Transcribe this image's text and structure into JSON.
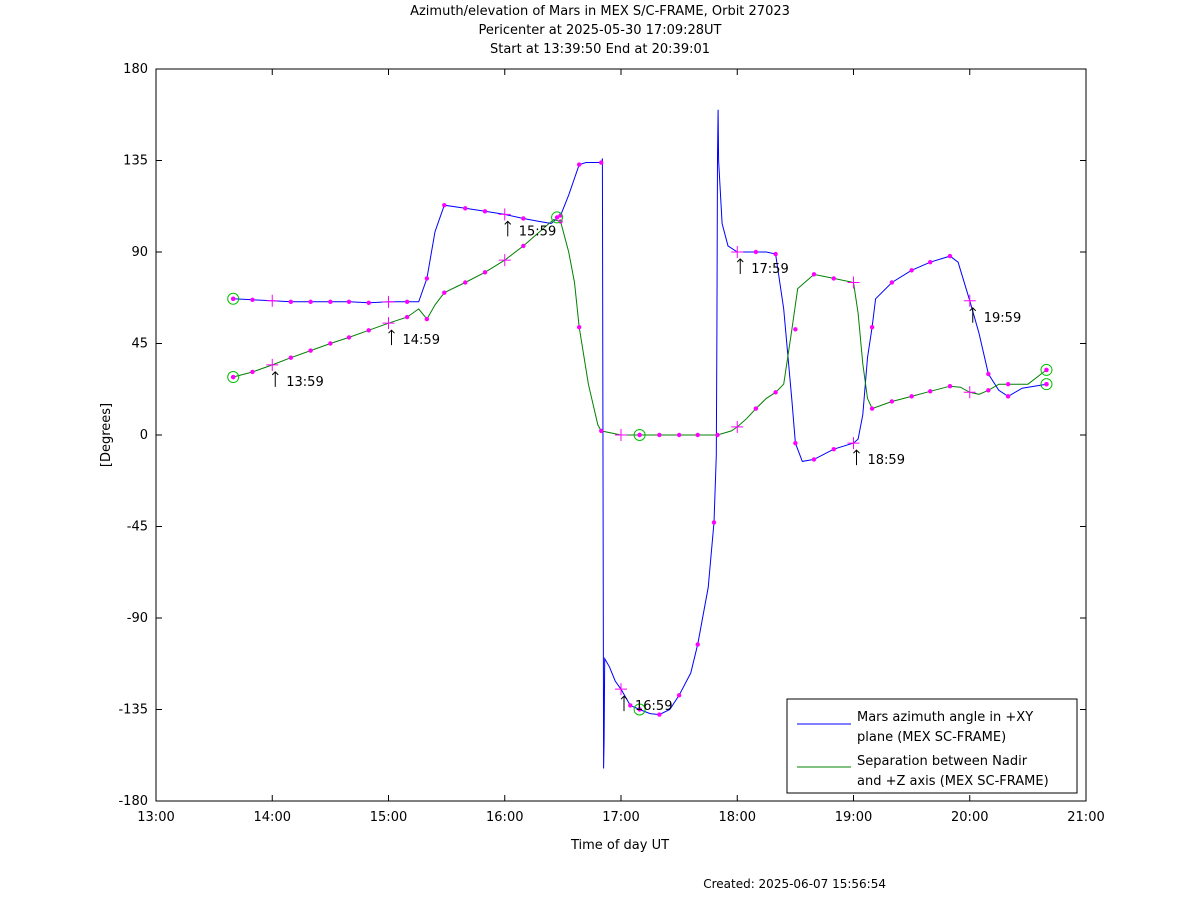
{
  "chart_data": {
    "type": "line",
    "title": "Azimuth/elevation of Mars in MEX S/C-FRAME,  Orbit 27023",
    "subtitle_1": "Pericenter at 2025-05-30 17:09:28UT",
    "subtitle_2": "Start at 13:39:50 End at 20:39:01",
    "xlabel": "Time of day UT",
    "ylabel": "[Degrees]",
    "xlim": [
      13.0,
      21.0
    ],
    "ylim": [
      -180,
      180
    ],
    "x_ticks": [
      {
        "v": 13,
        "label": "13:00"
      },
      {
        "v": 14,
        "label": "14:00"
      },
      {
        "v": 15,
        "label": "15:00"
      },
      {
        "v": 16,
        "label": "16:00"
      },
      {
        "v": 17,
        "label": "17:00"
      },
      {
        "v": 18,
        "label": "18:00"
      },
      {
        "v": 19,
        "label": "19:00"
      },
      {
        "v": 20,
        "label": "20:00"
      },
      {
        "v": 21,
        "label": "21:00"
      }
    ],
    "y_ticks": [
      {
        "v": 180,
        "label": "180"
      },
      {
        "v": 135,
        "label": "135"
      },
      {
        "v": 90,
        "label": "90"
      },
      {
        "v": 45,
        "label": "45"
      },
      {
        "v": 0,
        "label": "0"
      },
      {
        "v": -45,
        "label": "-45"
      },
      {
        "v": -90,
        "label": "-90"
      },
      {
        "v": -135,
        "label": "-135"
      },
      {
        "v": -180,
        "label": "-180"
      }
    ],
    "legend_position": "bottom-right",
    "series": [
      {
        "name_line1": "Mars azimuth angle in +XY",
        "name_line2": "plane (MEX SC-FRAME)",
        "color": "#0000ff",
        "points": [
          [
            13.664,
            67
          ],
          [
            13.83,
            66.5
          ],
          [
            14.0,
            66
          ],
          [
            14.16,
            65.5
          ],
          [
            14.33,
            65.5
          ],
          [
            14.5,
            65.5
          ],
          [
            14.66,
            65.5
          ],
          [
            14.83,
            65
          ],
          [
            15.0,
            65.5
          ],
          [
            15.16,
            65.5
          ],
          [
            15.26,
            65.5
          ],
          [
            15.33,
            77
          ],
          [
            15.4,
            100
          ],
          [
            15.48,
            113
          ],
          [
            15.66,
            111.5
          ],
          [
            15.83,
            110
          ],
          [
            16.0,
            108.5
          ],
          [
            16.16,
            106.5
          ],
          [
            16.3,
            105
          ],
          [
            16.4,
            104
          ],
          [
            16.48,
            108
          ],
          [
            16.55,
            118
          ],
          [
            16.64,
            133
          ],
          [
            16.7,
            134
          ],
          [
            16.83,
            134
          ],
          [
            16.835,
            134
          ],
          [
            16.84,
            136
          ],
          [
            16.85,
            -164
          ],
          [
            16.855,
            -150
          ],
          [
            16.86,
            -110
          ],
          [
            16.9,
            -114
          ],
          [
            16.95,
            -121
          ],
          [
            17.0,
            -125
          ],
          [
            17.08,
            -133
          ],
          [
            17.16,
            -135
          ],
          [
            17.25,
            -137
          ],
          [
            17.33,
            -137.5
          ],
          [
            17.42,
            -135
          ],
          [
            17.5,
            -128
          ],
          [
            17.6,
            -117
          ],
          [
            17.66,
            -103
          ],
          [
            17.75,
            -75
          ],
          [
            17.8,
            -43
          ],
          [
            17.82,
            -10
          ],
          [
            17.825,
            50
          ],
          [
            17.83,
            137
          ],
          [
            17.835,
            160
          ],
          [
            17.84,
            135
          ],
          [
            17.87,
            104
          ],
          [
            17.92,
            93
          ],
          [
            18.0,
            90
          ],
          [
            18.16,
            90
          ],
          [
            18.25,
            90
          ],
          [
            18.33,
            89
          ],
          [
            18.4,
            62
          ],
          [
            18.47,
            17
          ],
          [
            18.5,
            -4
          ],
          [
            18.56,
            -13
          ],
          [
            18.66,
            -12
          ],
          [
            18.83,
            -7
          ],
          [
            19.0,
            -4
          ],
          [
            19.04,
            -2
          ],
          [
            19.08,
            10
          ],
          [
            19.12,
            38
          ],
          [
            19.16,
            53
          ],
          [
            19.19,
            67
          ],
          [
            19.33,
            75
          ],
          [
            19.5,
            81
          ],
          [
            19.66,
            85
          ],
          [
            19.83,
            88
          ],
          [
            19.9,
            85
          ],
          [
            20.0,
            66
          ],
          [
            20.08,
            50
          ],
          [
            20.16,
            30
          ],
          [
            20.25,
            22
          ],
          [
            20.33,
            19
          ],
          [
            20.45,
            23
          ],
          [
            20.66,
            25
          ]
        ],
        "markers": [
          [
            13.664,
            67
          ],
          [
            13.83,
            66.5
          ],
          [
            14.16,
            65.5
          ],
          [
            14.33,
            65.5
          ],
          [
            14.5,
            65.5
          ],
          [
            14.66,
            65.5
          ],
          [
            14.83,
            65
          ],
          [
            15.16,
            65.5
          ],
          [
            15.33,
            77
          ],
          [
            15.48,
            113
          ],
          [
            15.66,
            111.5
          ],
          [
            15.83,
            110
          ],
          [
            16.16,
            106.5
          ],
          [
            16.48,
            108
          ],
          [
            16.64,
            133
          ],
          [
            16.83,
            134
          ],
          [
            17.08,
            -133
          ],
          [
            17.33,
            -137.5
          ],
          [
            17.5,
            -128
          ],
          [
            17.66,
            -103
          ],
          [
            17.8,
            -43
          ],
          [
            18.16,
            90
          ],
          [
            18.33,
            89
          ],
          [
            18.5,
            -4
          ],
          [
            18.66,
            -12
          ],
          [
            18.83,
            -7
          ],
          [
            19.16,
            53
          ],
          [
            19.33,
            75
          ],
          [
            19.5,
            81
          ],
          [
            19.66,
            85
          ],
          [
            19.83,
            88
          ],
          [
            20.16,
            30
          ],
          [
            20.33,
            19
          ],
          [
            20.66,
            25
          ]
        ],
        "hour_marks": [
          [
            14.0,
            66
          ],
          [
            15.0,
            65.5
          ],
          [
            16.0,
            108.5
          ],
          [
            17.0,
            -125
          ],
          [
            18.0,
            90
          ],
          [
            19.0,
            -4
          ],
          [
            20.0,
            66
          ]
        ],
        "endpoints": [
          [
            13.664,
            67
          ],
          [
            20.66,
            25
          ]
        ]
      },
      {
        "name_line1": "Separation between Nadir",
        "name_line2": "and +Z axis (MEX SC-FRAME)",
        "color": "#008000",
        "points": [
          [
            13.664,
            28.5
          ],
          [
            13.83,
            31
          ],
          [
            14.0,
            34.5
          ],
          [
            14.16,
            38
          ],
          [
            14.33,
            41.5
          ],
          [
            14.5,
            45
          ],
          [
            14.66,
            48
          ],
          [
            14.83,
            51.5
          ],
          [
            15.0,
            55
          ],
          [
            15.16,
            58
          ],
          [
            15.26,
            62
          ],
          [
            15.33,
            57
          ],
          [
            15.4,
            64
          ],
          [
            15.48,
            70
          ],
          [
            15.66,
            75
          ],
          [
            15.83,
            80
          ],
          [
            16.0,
            86
          ],
          [
            16.16,
            93
          ],
          [
            16.3,
            100
          ],
          [
            16.42,
            106
          ],
          [
            16.48,
            105
          ],
          [
            16.55,
            90
          ],
          [
            16.6,
            75
          ],
          [
            16.64,
            53
          ],
          [
            16.72,
            25
          ],
          [
            16.8,
            5
          ],
          [
            16.83,
            2
          ],
          [
            17.0,
            0
          ],
          [
            17.16,
            0
          ],
          [
            17.33,
            0
          ],
          [
            17.5,
            0
          ],
          [
            17.66,
            0
          ],
          [
            17.83,
            0
          ],
          [
            17.95,
            2
          ],
          [
            18.0,
            4
          ],
          [
            18.08,
            8
          ],
          [
            18.16,
            13
          ],
          [
            18.25,
            18
          ],
          [
            18.33,
            21
          ],
          [
            18.4,
            25
          ],
          [
            18.47,
            52
          ],
          [
            18.52,
            72
          ],
          [
            18.66,
            79
          ],
          [
            18.83,
            77
          ],
          [
            19.0,
            75
          ],
          [
            19.04,
            60
          ],
          [
            19.08,
            35
          ],
          [
            19.12,
            18
          ],
          [
            19.16,
            13
          ],
          [
            19.33,
            16.5
          ],
          [
            19.5,
            19
          ],
          [
            19.66,
            21.5
          ],
          [
            19.83,
            24
          ],
          [
            19.92,
            23.5
          ],
          [
            20.0,
            21
          ],
          [
            20.08,
            20
          ],
          [
            20.16,
            22
          ],
          [
            20.25,
            25
          ],
          [
            20.33,
            25
          ],
          [
            20.5,
            25
          ],
          [
            20.66,
            32
          ]
        ],
        "markers": [
          [
            13.664,
            28.5
          ],
          [
            13.83,
            31
          ],
          [
            14.16,
            38
          ],
          [
            14.33,
            41.5
          ],
          [
            14.5,
            45
          ],
          [
            14.66,
            48
          ],
          [
            14.83,
            51.5
          ],
          [
            15.16,
            58
          ],
          [
            15.33,
            57
          ],
          [
            15.48,
            70
          ],
          [
            15.66,
            75
          ],
          [
            15.83,
            80
          ],
          [
            16.16,
            93
          ],
          [
            16.48,
            105
          ],
          [
            16.64,
            53
          ],
          [
            16.83,
            2
          ],
          [
            17.16,
            0
          ],
          [
            17.33,
            0
          ],
          [
            17.5,
            0
          ],
          [
            17.66,
            0
          ],
          [
            17.83,
            0
          ],
          [
            18.16,
            13
          ],
          [
            18.33,
            21
          ],
          [
            18.5,
            52
          ],
          [
            18.66,
            79
          ],
          [
            18.83,
            77
          ],
          [
            19.16,
            13
          ],
          [
            19.33,
            16.5
          ],
          [
            19.5,
            19
          ],
          [
            19.66,
            21.5
          ],
          [
            19.83,
            24
          ],
          [
            20.16,
            22
          ],
          [
            20.33,
            25
          ],
          [
            20.66,
            32
          ]
        ],
        "hour_marks": [
          [
            14.0,
            34.5
          ],
          [
            15.0,
            55
          ],
          [
            16.0,
            86
          ],
          [
            17.0,
            0
          ],
          [
            18.0,
            4
          ],
          [
            19.0,
            75
          ],
          [
            20.0,
            21
          ]
        ],
        "endpoints": [
          [
            13.664,
            28.5
          ],
          [
            20.66,
            32
          ],
          [
            17.16,
            -135
          ],
          [
            17.16,
            0
          ],
          [
            16.45,
            107
          ]
        ]
      }
    ],
    "time_labels": [
      {
        "x": 14.0,
        "y": 34.5,
        "text": "13:59"
      },
      {
        "x": 15.0,
        "y": 55,
        "text": "14:59"
      },
      {
        "x": 16.0,
        "y": 108.5,
        "text": "15:59"
      },
      {
        "x": 17.0,
        "y": -125,
        "text": "16:59"
      },
      {
        "x": 18.0,
        "y": 90,
        "text": "17:59"
      },
      {
        "x": 19.0,
        "y": -4,
        "text": "18:59"
      },
      {
        "x": 20.0,
        "y": 66,
        "text": "19:59"
      }
    ]
  },
  "footer": {
    "created": "Created: 2025-06-07 15:56:54"
  }
}
